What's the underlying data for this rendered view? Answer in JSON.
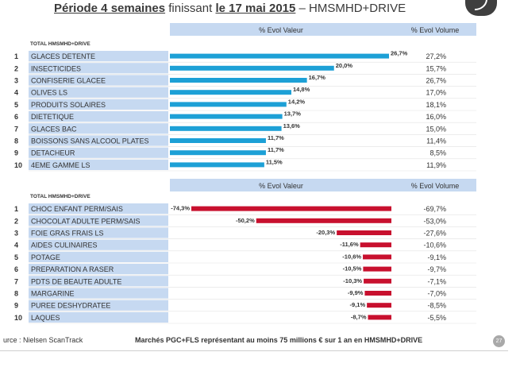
{
  "header": {
    "title_part1": "Période 4 semaines",
    "title_part2": " finissant ",
    "title_part3": "le 17 mai 2015",
    "title_part4": " – HMSMHD+DRIVE"
  },
  "chart_data": [
    {
      "type": "bar",
      "section_label": "TOTAL HMSMHD+DRIVE",
      "col_value_header": "% Evol Valeur",
      "col_volume_header": "% Evol Volume",
      "ranks": [
        "1",
        "2",
        "3",
        "4",
        "5",
        "6",
        "7",
        "8",
        "9",
        "10"
      ],
      "categories": [
        "GLACES DETENTE",
        "INSECTICIDES",
        "CONFISERIE GLACEE",
        "OLIVES LS",
        "PRODUITS SOLAIRES",
        "DIETETIQUE",
        "GLACES BAC",
        "BOISSONS SANS ALCOOL PLATES",
        "DETACHEUR",
        "4EME GAMME LS"
      ],
      "values": [
        26.7,
        20.0,
        16.7,
        14.8,
        14.2,
        13.7,
        13.6,
        11.7,
        11.7,
        11.5
      ],
      "value_labels": [
        "26,7%",
        "20,0%",
        "16,7%",
        "14,8%",
        "14,2%",
        "13,7%",
        "13,6%",
        "11,7%",
        "11,7%",
        "11,5%"
      ],
      "volume_labels": [
        "27,2%",
        "15,7%",
        "26,7%",
        "17,0%",
        "18,1%",
        "16,0%",
        "15,0%",
        "11,4%",
        "8,5%",
        "11,9%"
      ],
      "bar_color": "#1da0d6"
    },
    {
      "type": "bar",
      "section_label": "TOTAL HMSMHD+DRIVE",
      "col_value_header": "% Evol Valeur",
      "col_volume_header": "% Evol Volume",
      "ranks": [
        "1",
        "2",
        "3",
        "4",
        "5",
        "6",
        "7",
        "8",
        "9",
        "10"
      ],
      "categories": [
        "CHOC ENFANT PERM/SAIS",
        "CHOCOLAT ADULTE PERM/SAIS",
        "FOIE GRAS FRAIS LS",
        "AIDES CULINAIRES",
        "POTAGE",
        "PREPARATION A RASER",
        "PDTS DE BEAUTE ADULTE",
        "MARGARINE",
        "PUREE DESHYDRATEE",
        "LAQUES"
      ],
      "values": [
        -74.3,
        -50.2,
        -20.3,
        -11.6,
        -10.6,
        -10.5,
        -10.3,
        -9.9,
        -9.1,
        -8.7
      ],
      "value_labels": [
        "-74,3%",
        "-50,2%",
        "-20,3%",
        "-11,6%",
        "-10,6%",
        "-10,5%",
        "-10,3%",
        "-9,9%",
        "-9,1%",
        "-8,7%"
      ],
      "volume_labels": [
        "-69,7%",
        "-53,0%",
        "-27,6%",
        "-10,6%",
        "-9,1%",
        "-9,7%",
        "-7,1%",
        "-7,0%",
        "-8,5%",
        "-5,5%"
      ],
      "bar_color": "#c8102e"
    }
  ],
  "footer": {
    "source": "urce : Nielsen ScanTrack",
    "note": "Marchés PGC+FLS représentant au moins 75 millions € sur 1 an en HMSMHD+DRIVE",
    "page": "27"
  },
  "colors": {
    "header_fill": "#c6d9f1",
    "label_fill": "#c6d9f1"
  }
}
